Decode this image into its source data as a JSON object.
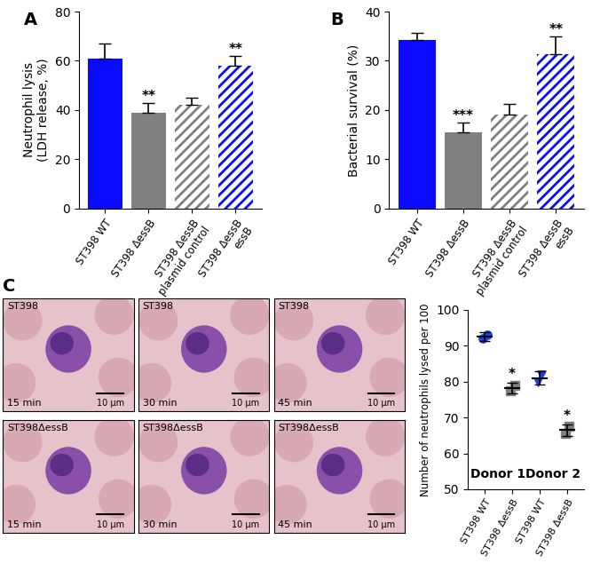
{
  "chart_data": [
    {
      "type": "bar",
      "title": "A",
      "y_label": "Neutrophil lysis\n(LDH release, %)",
      "categories": [
        "ST398 WT",
        "ST398 ΔessB",
        "ST398 ΔessB\nplasmid control",
        "ST398 ΔessB\nessB"
      ],
      "values": [
        61,
        39,
        42,
        58
      ],
      "errors": [
        6,
        4,
        3,
        4
      ],
      "colors": [
        "#0a0aff",
        "#808080",
        "#808080",
        "#0a0aff"
      ],
      "significance": [
        null,
        "**",
        null,
        "**"
      ],
      "ylim": [
        0,
        80
      ],
      "yticks": [
        0,
        20,
        40,
        60,
        80
      ]
    },
    {
      "type": "bar",
      "title": "B",
      "y_label": "Bacterial survival (%)",
      "categories": [
        "ST398 WT",
        "ST398 ΔessB",
        "ST398 ΔessB\nplasmid control",
        "ST398 ΔessB\nessB"
      ],
      "values": [
        34.3,
        15.5,
        19,
        31.3
      ],
      "errors": [
        1.3,
        2,
        2.3,
        3.7
      ],
      "colors": [
        "#0a0aff",
        "#808080",
        "#808080",
        "#0a0aff"
      ],
      "significance": [
        null,
        "***",
        null,
        "**"
      ],
      "ylim": [
        0,
        40
      ],
      "yticks": [
        0,
        10,
        20,
        30,
        40
      ]
    },
    {
      "type": "dot",
      "y_label": "Number of neutrophils lysed per 100",
      "categories": [
        "ST398 WT",
        "ST398 ΔessB",
        "ST398 WT",
        "ST398 ΔessB"
      ],
      "points": [
        [
          92,
          93
        ],
        [
          77.5,
          79
        ],
        [
          80,
          82
        ],
        [
          65.5,
          67.5
        ]
      ],
      "means": [
        92.5,
        78.2,
        81,
        66.5
      ],
      "errors": [
        1.2,
        1.5,
        1.8,
        1.6
      ],
      "colors": [
        "#1f3fe0",
        "#7f7f7f",
        "#1f3fe0",
        "#7f7f7f"
      ],
      "significance": [
        null,
        "*",
        null,
        "*"
      ],
      "groups": [
        "Donor 1",
        "Donor 2"
      ],
      "ylim": [
        50,
        100
      ],
      "yticks": [
        50,
        60,
        70,
        80,
        90,
        100
      ]
    }
  ],
  "micrographs": {
    "title": "C",
    "panels": [
      {
        "label": "ST398",
        "time": "15 min",
        "scale": "10 µm"
      },
      {
        "label": "ST398",
        "time": "30 min",
        "scale": "10 µm"
      },
      {
        "label": "ST398",
        "time": "45 min",
        "scale": "10 µm"
      },
      {
        "label": "ST398ΔessB",
        "time": "15 min",
        "scale": "10 µm"
      },
      {
        "label": "ST398ΔessB",
        "time": "30 min",
        "scale": "10 µm"
      },
      {
        "label": "ST398ΔessB",
        "time": "45 min",
        "scale": "10 µm"
      }
    ]
  }
}
